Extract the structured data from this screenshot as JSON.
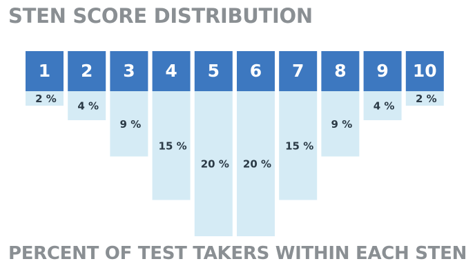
{
  "chart_data": {
    "type": "bar",
    "title": "STEN SCORE DISTRIBUTION",
    "subtitle": "PERCENT OF TEST TAKERS WITHIN EACH STEN",
    "categories": [
      "1",
      "2",
      "3",
      "4",
      "5",
      "6",
      "7",
      "8",
      "9",
      "10"
    ],
    "values": [
      2,
      4,
      9,
      15,
      20,
      20,
      15,
      9,
      4,
      2
    ],
    "value_labels": [
      "2 %",
      "4 %",
      "9 %",
      "15 %",
      "20 %",
      "20 %",
      "15 %",
      "9 %",
      "4 %",
      "2 %"
    ],
    "ylim": [
      0,
      20
    ],
    "grid": false,
    "colors": {
      "header": "#3d78c0",
      "bar": "#d5ebf5",
      "header_text": "#ffffff",
      "value_text": "#2b3a46",
      "title_text": "#8a8f93"
    }
  }
}
